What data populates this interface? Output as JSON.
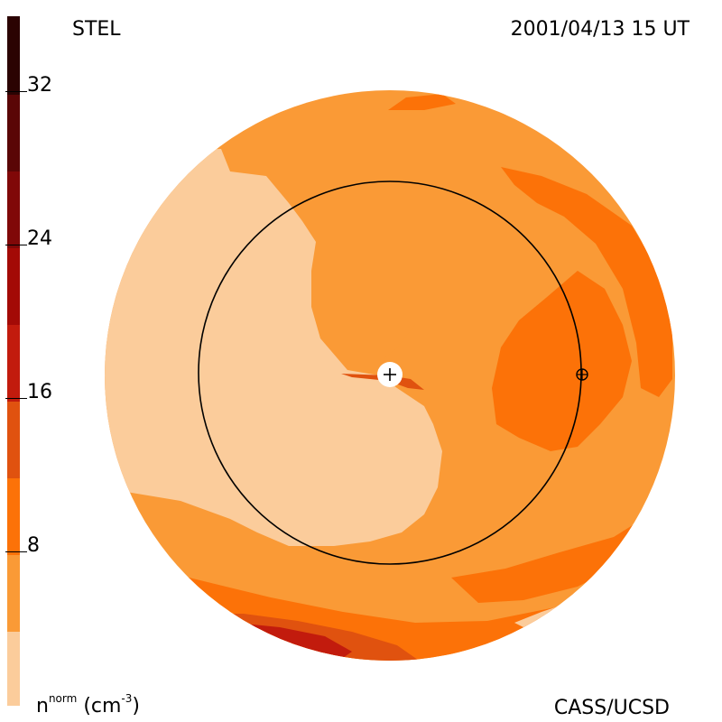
{
  "header": {
    "origin_label": "STEL",
    "timestamp": "2001/04/13 15 UT"
  },
  "footer": {
    "unit_main": "n",
    "unit_sup": "norm",
    "unit_rest": "(cm",
    "unit_exp": "-3",
    "unit_close": ")",
    "credit": "CASS/UCSD"
  },
  "colorbar": {
    "ticks": [
      "32",
      "24",
      "16",
      "8"
    ],
    "colors": [
      "#fbcc9b",
      "#fa9a36",
      "#fc7208",
      "#e0520f",
      "#c21b0d",
      "#a30a06",
      "#800808",
      "#5a0606",
      "#2b0302"
    ]
  },
  "map": {
    "colors": {
      "light": "#fbcc9b",
      "medium": "#fa9a36",
      "orange": "#fc7208",
      "dark": "#e0520f",
      "red": "#c21b0d",
      "orbit": "#000000",
      "sun_marker": "#ffffff"
    },
    "icons": [
      "sun-marker-icon",
      "earth-marker-icon"
    ]
  }
}
